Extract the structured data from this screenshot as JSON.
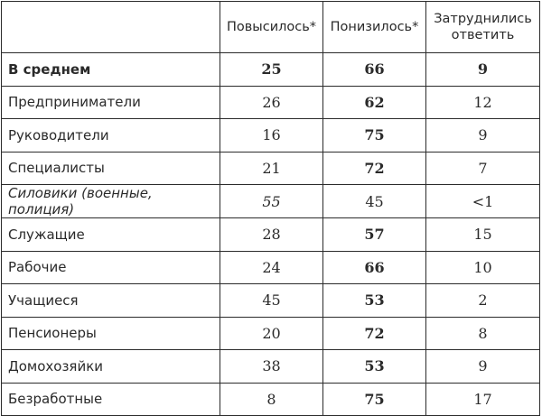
{
  "table": {
    "headers": [
      "",
      "Повысилось*",
      "Понизилось*",
      "Затруднились ответить"
    ],
    "rows": [
      {
        "label": "В среднем",
        "label_bold": true,
        "label_italic": false,
        "cells": [
          {
            "v": "25",
            "b": true
          },
          {
            "v": "66",
            "b": true
          },
          {
            "v": "9",
            "b": true
          }
        ]
      },
      {
        "label": "Предприниматели",
        "label_bold": false,
        "label_italic": false,
        "cells": [
          {
            "v": "26",
            "b": false
          },
          {
            "v": "62",
            "b": true
          },
          {
            "v": "12",
            "b": false
          }
        ]
      },
      {
        "label": "Руководители",
        "label_bold": false,
        "label_italic": false,
        "cells": [
          {
            "v": "16",
            "b": false
          },
          {
            "v": "75",
            "b": true
          },
          {
            "v": "9",
            "b": false
          }
        ]
      },
      {
        "label": "Специалисты",
        "label_bold": false,
        "label_italic": false,
        "cells": [
          {
            "v": "21",
            "b": false
          },
          {
            "v": "72",
            "b": true
          },
          {
            "v": "7",
            "b": false
          }
        ]
      },
      {
        "label": "Силовики (военные, полиция)",
        "label_bold": false,
        "label_italic": true,
        "cells": [
          {
            "v": "55",
            "b": false,
            "i": true
          },
          {
            "v": "45",
            "b": false
          },
          {
            "v": "<1",
            "b": false
          }
        ]
      },
      {
        "label": "Служащие",
        "label_bold": false,
        "label_italic": false,
        "cells": [
          {
            "v": "28",
            "b": false
          },
          {
            "v": "57",
            "b": true
          },
          {
            "v": "15",
            "b": false
          }
        ]
      },
      {
        "label": "Рабочие",
        "label_bold": false,
        "label_italic": false,
        "cells": [
          {
            "v": "24",
            "b": false
          },
          {
            "v": "66",
            "b": true
          },
          {
            "v": "10",
            "b": false
          }
        ]
      },
      {
        "label": "Учащиеся",
        "label_bold": false,
        "label_italic": false,
        "cells": [
          {
            "v": "45",
            "b": false
          },
          {
            "v": "53",
            "b": true
          },
          {
            "v": "2",
            "b": false
          }
        ]
      },
      {
        "label": "Пенсионеры",
        "label_bold": false,
        "label_italic": false,
        "cells": [
          {
            "v": "20",
            "b": false
          },
          {
            "v": "72",
            "b": true
          },
          {
            "v": "8",
            "b": false
          }
        ]
      },
      {
        "label": "Домохозяйки",
        "label_bold": false,
        "label_italic": false,
        "cells": [
          {
            "v": "38",
            "b": false
          },
          {
            "v": "53",
            "b": true
          },
          {
            "v": "9",
            "b": false
          }
        ]
      },
      {
        "label": "Безработные",
        "label_bold": false,
        "label_italic": false,
        "cells": [
          {
            "v": "8",
            "b": false
          },
          {
            "v": "75",
            "b": true
          },
          {
            "v": "17",
            "b": false
          }
        ]
      }
    ]
  }
}
